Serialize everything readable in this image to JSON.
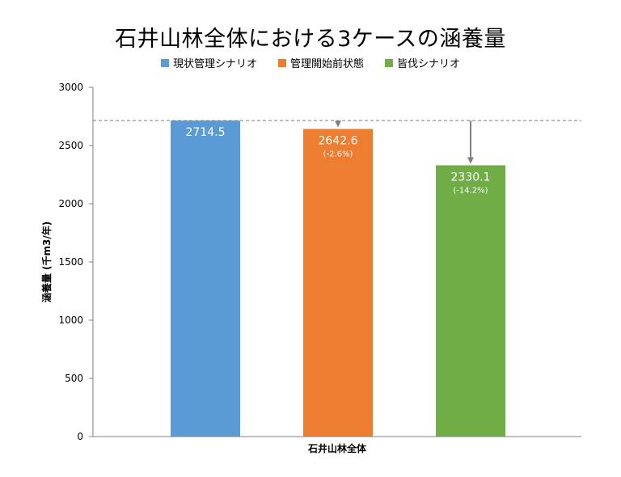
{
  "chart_data": {
    "type": "bar",
    "title": "石井山林全体における3ケースの涵養量",
    "xlabel": "石井山林全体",
    "ylabel": "涵養量 (千m3/年)",
    "ylim": [
      0,
      3000
    ],
    "yticks": [
      0,
      500,
      1000,
      1500,
      2000,
      2500,
      3000
    ],
    "categories": [
      "石井山林全体"
    ],
    "legend_position": "top-center",
    "reference_line": {
      "value": 2714.5,
      "style": "dashed"
    },
    "series": [
      {
        "name": "現状管理シナリオ",
        "value": 2714.5,
        "value_label": "2714.5",
        "change_label": "",
        "color": "#5b9bd5"
      },
      {
        "name": "管理開始前状態",
        "value": 2642.6,
        "value_label": "2642.6",
        "change_label": "(-2.6%)",
        "color": "#ed7d31"
      },
      {
        "name": "皆伐シナリオ",
        "value": 2330.1,
        "value_label": "2330.1",
        "change_label": "(-14.2%)",
        "color": "#70ad47"
      }
    ]
  }
}
